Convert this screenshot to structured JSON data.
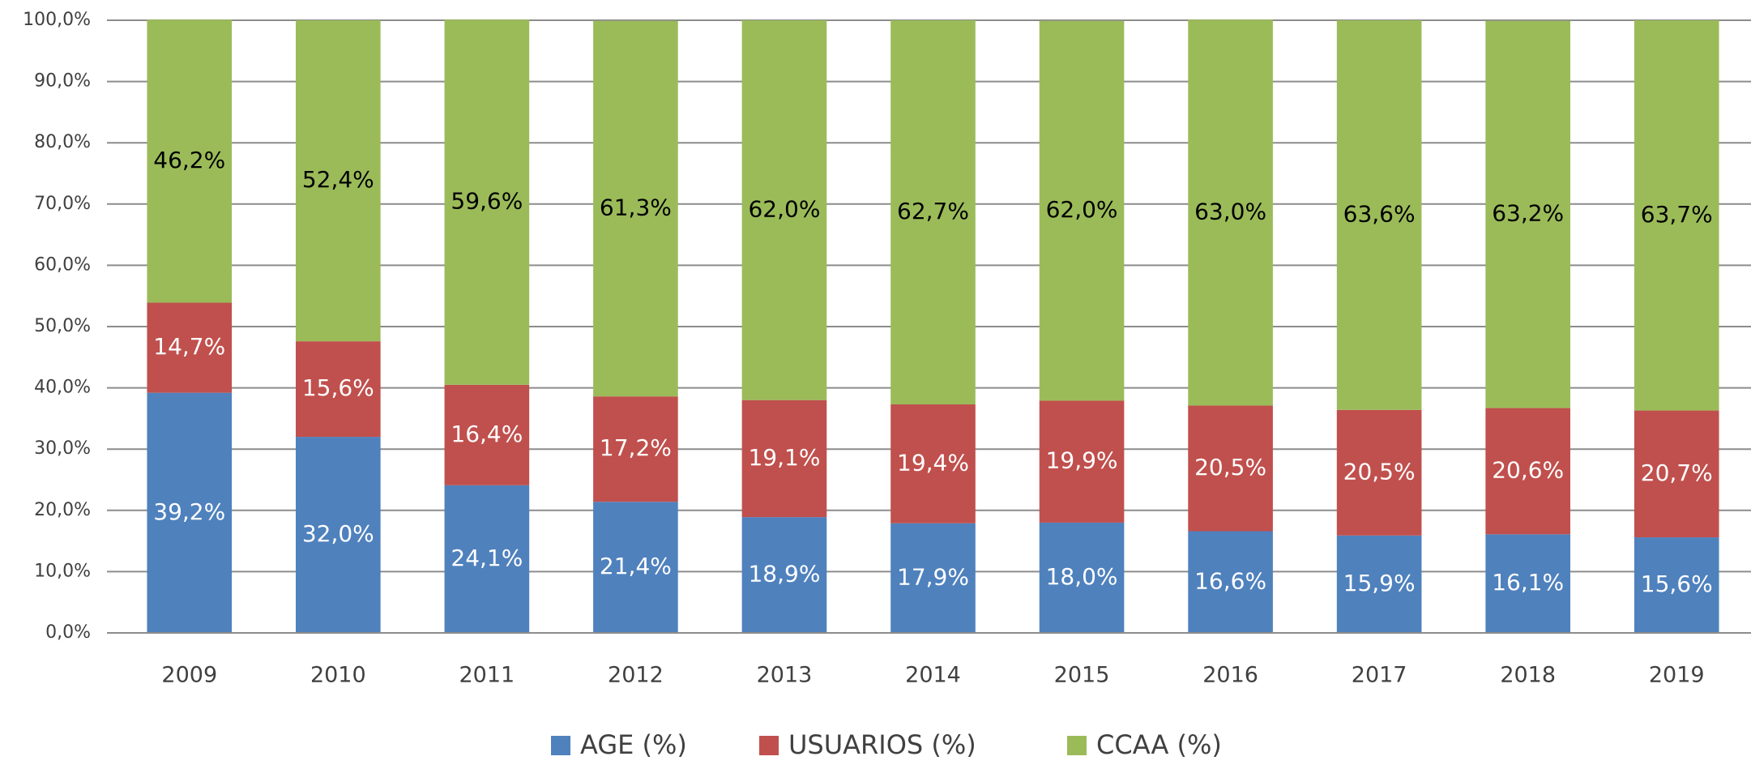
{
  "chart_data": {
    "type": "stacked_bar",
    "categories": [
      "2009",
      "2010",
      "2011",
      "2012",
      "2013",
      "2014",
      "2015",
      "2016",
      "2017",
      "2018",
      "2019"
    ],
    "series": [
      {
        "name": "AGE (%)",
        "color": "#4f81bd",
        "label_color": "#ffffff",
        "values": [
          39.2,
          32.0,
          24.1,
          21.4,
          18.9,
          17.9,
          18.0,
          16.6,
          15.9,
          16.1,
          15.6
        ],
        "value_labels": [
          "39,2%",
          "32,0%",
          "24,1%",
          "21,4%",
          "18,9%",
          "17,9%",
          "18,0%",
          "16,6%",
          "15,9%",
          "16,1%",
          "15,6%"
        ]
      },
      {
        "name": "USUARIOS (%)",
        "color": "#c0504d",
        "label_color": "#ffffff",
        "values": [
          14.7,
          15.6,
          16.4,
          17.2,
          19.1,
          19.4,
          19.9,
          20.5,
          20.5,
          20.6,
          20.7
        ],
        "value_labels": [
          "14,7%",
          "15,6%",
          "16,4%",
          "17,2%",
          "19,1%",
          "19,4%",
          "19,9%",
          "20,5%",
          "20,5%",
          "20,6%",
          "20,7%"
        ]
      },
      {
        "name": "CCAA (%)",
        "color": "#9bbb59",
        "label_color": "#000000",
        "values": [
          46.2,
          52.4,
          59.6,
          61.3,
          62.0,
          62.7,
          62.0,
          63.0,
          63.6,
          63.2,
          63.7
        ],
        "value_labels": [
          "46,2%",
          "52,4%",
          "59,6%",
          "61,3%",
          "62,0%",
          "62,7%",
          "62,0%",
          "63,0%",
          "63,6%",
          "63,2%",
          "63,7%"
        ]
      }
    ],
    "ylim": [
      0,
      100
    ],
    "yticks": [
      {
        "value": 0,
        "label": "0,0%"
      },
      {
        "value": 10,
        "label": "10,0%"
      },
      {
        "value": 20,
        "label": "20,0%"
      },
      {
        "value": 30,
        "label": "30,0%"
      },
      {
        "value": 40,
        "label": "40,0%"
      },
      {
        "value": 50,
        "label": "50,0%"
      },
      {
        "value": 60,
        "label": "60,0%"
      },
      {
        "value": 70,
        "label": "70,0%"
      },
      {
        "value": 80,
        "label": "80,0%"
      },
      {
        "value": 90,
        "label": "90,0%"
      },
      {
        "value": 100,
        "label": "100,0%"
      }
    ],
    "grid": true,
    "legend": "bottom"
  }
}
